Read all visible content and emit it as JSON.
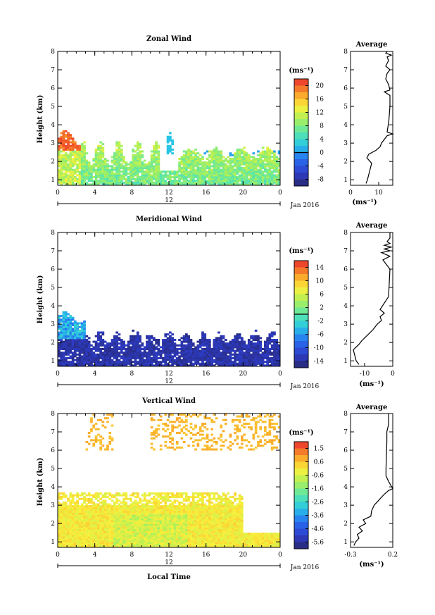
{
  "chart_data": [
    {
      "type": "heatmap",
      "title": "Zonal Wind",
      "ylabel": "Height (km)",
      "xlabel": "",
      "x_ticks": [
        "0",
        "4",
        "8",
        "12",
        "16",
        "20",
        "0"
      ],
      "y_ticks": [
        "1",
        "2",
        "3",
        "4",
        "5",
        "6",
        "7",
        "8"
      ],
      "xlim": [
        0,
        24
      ],
      "ylim": [
        0.7,
        8
      ],
      "day_label": "12",
      "date_label": "Jan 2016",
      "colorbar": {
        "unit": "(ms⁻¹)",
        "ticks": [
          "20",
          "16",
          "12",
          "8",
          "4",
          "0",
          "-4",
          "-8"
        ],
        "range": [
          -10,
          22
        ],
        "contour_value": 0
      },
      "average": {
        "title": "Average",
        "unit": "(ms⁻¹)",
        "x_ticks": [
          "0",
          "10"
        ],
        "xlim": [
          0,
          15
        ],
        "profile": [
          [
            0.8,
            5.5
          ],
          [
            1.0,
            6
          ],
          [
            1.3,
            6.5
          ],
          [
            1.6,
            7
          ],
          [
            1.9,
            7.5
          ],
          [
            2.2,
            5.8
          ],
          [
            2.4,
            6.5
          ],
          [
            2.6,
            9
          ],
          [
            2.8,
            10.5
          ],
          [
            3.0,
            11
          ],
          [
            3.2,
            12
          ],
          [
            3.4,
            13
          ],
          [
            3.5,
            15
          ],
          [
            3.6,
            13
          ],
          [
            4.2,
            13.6
          ],
          [
            5.0,
            14
          ],
          [
            5.6,
            14
          ],
          [
            5.8,
            12
          ],
          [
            5.9,
            14
          ],
          [
            6.2,
            13.5
          ],
          [
            6.5,
            12.5
          ],
          [
            6.8,
            13
          ],
          [
            7.0,
            14
          ],
          [
            7.2,
            12.5
          ],
          [
            7.5,
            13.5
          ],
          [
            7.7,
            13
          ],
          [
            7.8,
            14.5
          ],
          [
            7.9,
            12.5
          ],
          [
            8.0,
            13
          ]
        ]
      }
    },
    {
      "type": "heatmap",
      "title": "Meridional Wind",
      "ylabel": "Height (km)",
      "xlabel": "",
      "x_ticks": [
        "0",
        "4",
        "8",
        "12",
        "16",
        "20",
        "0"
      ],
      "y_ticks": [
        "1",
        "2",
        "3",
        "4",
        "5",
        "6",
        "7",
        "8"
      ],
      "xlim": [
        0,
        24
      ],
      "ylim": [
        0.7,
        8
      ],
      "day_label": "12",
      "date_label": "Jan 2016",
      "colorbar": {
        "unit": "(ms⁻¹)",
        "ticks": [
          "14",
          "10",
          "6",
          "2",
          "-2",
          "-6",
          "-10",
          "-14"
        ],
        "range": [
          -16,
          16
        ],
        "contour_value": 0
      },
      "average": {
        "title": "Average",
        "unit": "(ms⁻¹)",
        "x_ticks": [
          "-10",
          "0"
        ],
        "xlim": [
          -15,
          0
        ],
        "profile": [
          [
            0.8,
            -12
          ],
          [
            1.0,
            -13
          ],
          [
            1.3,
            -13.5
          ],
          [
            1.6,
            -14
          ],
          [
            1.9,
            -12
          ],
          [
            2.1,
            -11
          ],
          [
            2.4,
            -9
          ],
          [
            2.7,
            -7
          ],
          [
            3.0,
            -5.5
          ],
          [
            3.2,
            -4
          ],
          [
            3.4,
            -4.5
          ],
          [
            3.6,
            -3
          ],
          [
            3.8,
            -4.5
          ],
          [
            4.5,
            -1.5
          ],
          [
            6.0,
            -1
          ],
          [
            6.5,
            -3.5
          ],
          [
            6.7,
            -1
          ],
          [
            6.9,
            -4
          ],
          [
            7.0,
            -1
          ],
          [
            7.1,
            -3
          ],
          [
            7.2,
            -0.5
          ],
          [
            7.3,
            -3
          ],
          [
            7.4,
            -1
          ],
          [
            7.5,
            -2
          ],
          [
            7.7,
            -1
          ],
          [
            8.0,
            -1
          ]
        ]
      }
    },
    {
      "type": "heatmap",
      "title": "Vertical Wind",
      "ylabel": "Height (km)",
      "xlabel": "Local Time",
      "x_ticks": [
        "0",
        "4",
        "8",
        "12",
        "16",
        "20",
        "0"
      ],
      "y_ticks": [
        "1",
        "2",
        "3",
        "4",
        "5",
        "6",
        "7",
        "8"
      ],
      "xlim": [
        0,
        24
      ],
      "ylim": [
        0.7,
        8
      ],
      "day_label": "12",
      "date_label": "Jan 2016",
      "colorbar": {
        "unit": "(ms⁻¹)",
        "ticks": [
          "1.5",
          "0.6",
          "-0.6",
          "-1.6",
          "-2.6",
          "-3.6",
          "-4.6",
          "-5.6"
        ],
        "range": [
          -6,
          2
        ],
        "contour_value": null
      },
      "average": {
        "title": "Average",
        "unit": "(ms⁻¹)",
        "x_ticks": [
          "-0.3",
          "0.2"
        ],
        "xlim": [
          -0.3,
          0.2
        ],
        "profile": [
          [
            0.8,
            -0.26
          ],
          [
            1.0,
            -0.24
          ],
          [
            1.2,
            -0.2
          ],
          [
            1.4,
            -0.22
          ],
          [
            1.6,
            -0.16
          ],
          [
            1.8,
            -0.2
          ],
          [
            2.0,
            -0.12
          ],
          [
            2.2,
            -0.15
          ],
          [
            2.4,
            -0.06
          ],
          [
            2.7,
            -0.05
          ],
          [
            3.0,
            -0.02
          ],
          [
            3.3,
            0.04
          ],
          [
            3.6,
            0.1
          ],
          [
            3.8,
            0.15
          ],
          [
            3.9,
            0.2
          ],
          [
            4.3,
            0.15
          ],
          [
            4.6,
            0.12
          ],
          [
            5.0,
            0.12
          ],
          [
            6.5,
            0.13
          ],
          [
            7.0,
            0.13
          ],
          [
            7.4,
            0.15
          ],
          [
            7.8,
            0.15
          ],
          [
            8.0,
            0.15
          ]
        ]
      }
    }
  ]
}
